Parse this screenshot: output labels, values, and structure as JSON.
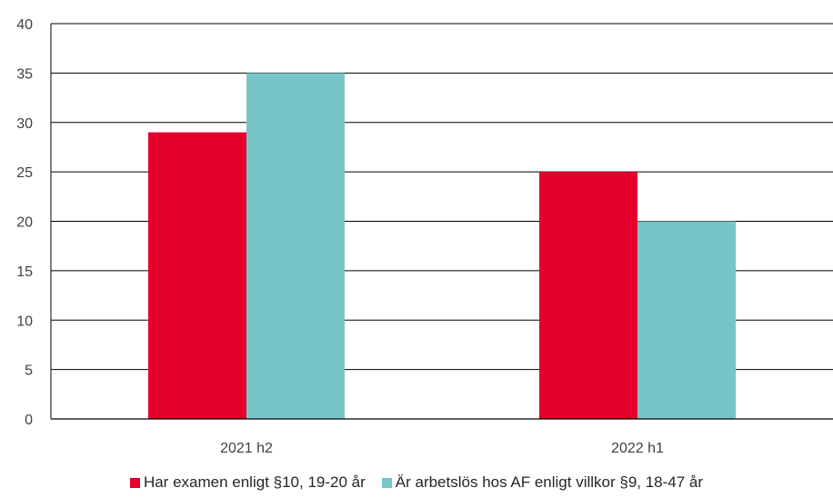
{
  "chart_data": {
    "type": "bar",
    "categories": [
      "2021 h2",
      "2022 h1"
    ],
    "series": [
      {
        "name": "Har examen enligt §10, 19-20 år",
        "values": [
          29,
          25
        ],
        "color": "#E4002B"
      },
      {
        "name": "Är arbetslös hos AF enligt villkor §9, 18-47 år",
        "values": [
          35,
          20
        ],
        "color": "#78C5C7"
      }
    ],
    "title": "",
    "xlabel": "",
    "ylabel": "",
    "ylim": [
      0,
      40
    ],
    "yticks": [
      0,
      5,
      10,
      15,
      20,
      25,
      30,
      35,
      40
    ],
    "grid": true,
    "legend_position": "bottom"
  }
}
